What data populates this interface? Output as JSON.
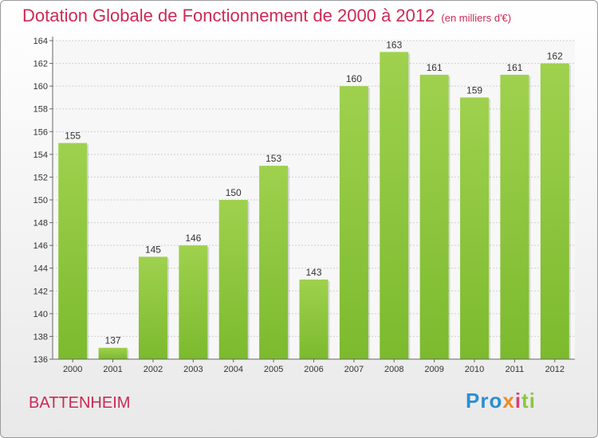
{
  "chart_data": {
    "type": "bar",
    "title": "Dotation Globale de Fonctionnement de 2000 à 2012",
    "subtitle": "(en milliers d'€)",
    "categories": [
      "2000",
      "2001",
      "2002",
      "2003",
      "2004",
      "2005",
      "2006",
      "2007",
      "2008",
      "2009",
      "2010",
      "2011",
      "2012"
    ],
    "values": [
      155,
      137,
      145,
      146,
      150,
      153,
      143,
      160,
      163,
      161,
      159,
      161,
      162
    ],
    "ylim": [
      136,
      164
    ],
    "yticks": [
      136,
      138,
      140,
      142,
      144,
      146,
      148,
      150,
      152,
      154,
      156,
      158,
      160,
      162,
      164
    ],
    "grid": true,
    "bar_color": "#7cba2e",
    "bar_color_top": "#9fd14e"
  },
  "footer": {
    "municipality": "BATTENHEIM",
    "logo": {
      "p1": "Pro",
      "p2": "x",
      "p3": "i",
      "p4": "ti"
    }
  }
}
